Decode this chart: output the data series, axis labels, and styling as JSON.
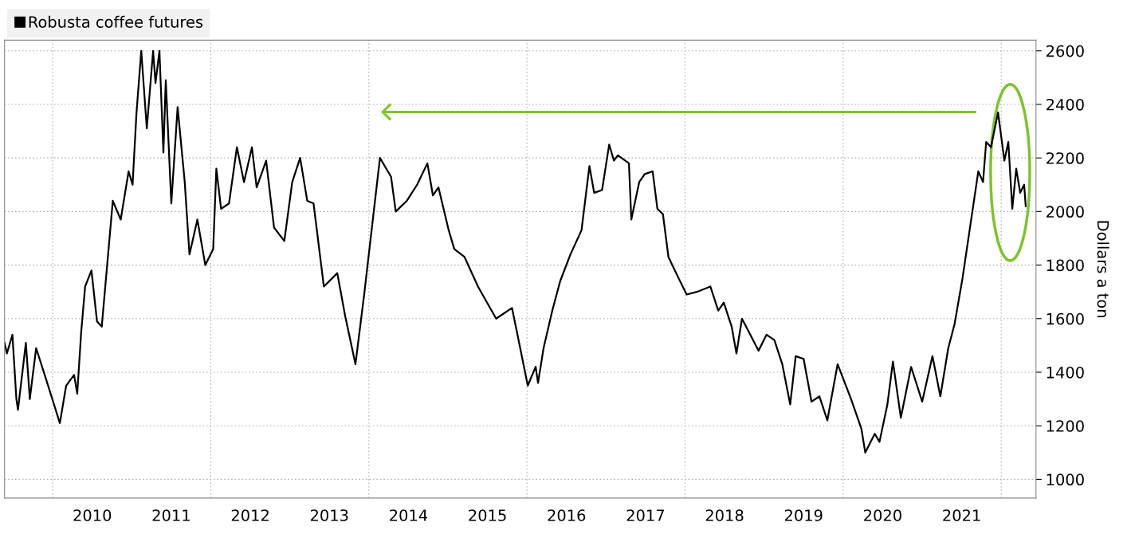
{
  "chart_data": {
    "type": "line",
    "ylabel": "Dollars a ton",
    "x": [
      2009.39,
      2009.42,
      2009.49,
      2009.54,
      2009.56,
      2009.66,
      2009.71,
      2009.79,
      2009.92,
      2010.09,
      2010.17,
      2010.27,
      2010.31,
      2010.36,
      2010.41,
      2010.49,
      2010.56,
      2010.62,
      2010.76,
      2010.86,
      2010.96,
      2011.01,
      2011.06,
      2011.12,
      2011.19,
      2011.27,
      2011.3,
      2011.35,
      2011.4,
      2011.43,
      2011.5,
      2011.58,
      2011.67,
      2011.73,
      2011.83,
      2011.93,
      2012.03,
      2012.07,
      2012.13,
      2012.23,
      2012.33,
      2012.42,
      2012.52,
      2012.58,
      2012.7,
      2012.8,
      2012.93,
      2013.03,
      2013.13,
      2013.22,
      2013.3,
      2013.43,
      2013.6,
      2013.7,
      2013.83,
      2013.94,
      2014.14,
      2014.28,
      2014.34,
      2014.48,
      2014.61,
      2014.74,
      2014.81,
      2014.88,
      2015.01,
      2015.08,
      2015.21,
      2015.38,
      2015.61,
      2015.81,
      2015.88,
      2016.01,
      2016.11,
      2016.14,
      2016.21,
      2016.32,
      2016.42,
      2016.55,
      2016.69,
      2016.79,
      2016.85,
      2016.95,
      2017.04,
      2017.1,
      2017.15,
      2017.29,
      2017.32,
      2017.42,
      2017.49,
      2017.59,
      2017.65,
      2017.72,
      2017.79,
      2017.92,
      2018.02,
      2018.15,
      2018.32,
      2018.42,
      2018.49,
      2018.59,
      2018.65,
      2018.72,
      2018.93,
      2019.03,
      2019.13,
      2019.23,
      2019.33,
      2019.4,
      2019.5,
      2019.6,
      2019.7,
      2019.8,
      2019.93,
      2020.1,
      2020.23,
      2020.28,
      2020.4,
      2020.46,
      2020.56,
      2020.63,
      2020.73,
      2020.86,
      2021.0,
      2021.13,
      2021.23,
      2021.33,
      2021.41,
      2021.51,
      2021.61,
      2021.71,
      2021.77,
      2021.81,
      2021.87,
      2021.96,
      2022.04,
      2022.09,
      2022.14,
      2022.19,
      2022.24,
      2022.29,
      2022.31
    ],
    "series": [
      {
        "name": "Robusta coffee futures",
        "color": "#000000",
        "values": [
          1510,
          1470,
          1540,
          1300,
          1260,
          1510,
          1300,
          1490,
          1370,
          1210,
          1350,
          1390,
          1320,
          1550,
          1720,
          1780,
          1590,
          1570,
          2040,
          1970,
          2150,
          2100,
          2370,
          2600,
          2310,
          2600,
          2480,
          2600,
          2220,
          2490,
          2030,
          2390,
          2110,
          1840,
          1970,
          1800,
          1860,
          2160,
          2010,
          2030,
          2240,
          2110,
          2240,
          2090,
          2190,
          1940,
          1890,
          2110,
          2200,
          2040,
          2030,
          1720,
          1770,
          1610,
          1430,
          1690,
          2200,
          2130,
          2000,
          2040,
          2100,
          2180,
          2060,
          2090,
          1930,
          1860,
          1830,
          1720,
          1600,
          1640,
          1540,
          1350,
          1420,
          1360,
          1490,
          1630,
          1740,
          1840,
          1930,
          2170,
          2070,
          2080,
          2250,
          2190,
          2210,
          2180,
          1970,
          2110,
          2140,
          2150,
          2010,
          1990,
          1830,
          1750,
          1690,
          1700,
          1720,
          1630,
          1660,
          1570,
          1470,
          1600,
          1480,
          1540,
          1520,
          1430,
          1280,
          1460,
          1450,
          1290,
          1310,
          1220,
          1430,
          1300,
          1190,
          1100,
          1170,
          1140,
          1280,
          1440,
          1230,
          1420,
          1290,
          1460,
          1310,
          1490,
          1580,
          1750,
          1950,
          2150,
          2110,
          2260,
          2240,
          2370,
          2190,
          2260,
          2010,
          2160,
          2070,
          2100,
          2020
        ]
      }
    ],
    "xlim": [
      2009.39,
      2022.44
    ],
    "xticks": [
      {
        "value": 2010.5,
        "label": "2010"
      },
      {
        "value": 2011.5,
        "label": "2011"
      },
      {
        "value": 2012.5,
        "label": "2012"
      },
      {
        "value": 2013.5,
        "label": "2013"
      },
      {
        "value": 2014.5,
        "label": "2014"
      },
      {
        "value": 2015.5,
        "label": "2015"
      },
      {
        "value": 2016.5,
        "label": "2016"
      },
      {
        "value": 2017.5,
        "label": "2017"
      },
      {
        "value": 2018.5,
        "label": "2018"
      },
      {
        "value": 2019.5,
        "label": "2019"
      },
      {
        "value": 2020.5,
        "label": "2020"
      },
      {
        "value": 2021.5,
        "label": "2021"
      },
      {
        "value": 2010,
        "label": null
      },
      {
        "value": 2012,
        "label": null
      },
      {
        "value": 2014,
        "label": null
      },
      {
        "value": 2016,
        "label": null
      },
      {
        "value": 2018,
        "label": null
      },
      {
        "value": 2020,
        "label": null
      },
      {
        "value": 2022,
        "label": null
      }
    ],
    "ylim": [
      930,
      2640
    ],
    "yticks": [
      1000,
      1200,
      1400,
      1600,
      1800,
      2000,
      2200,
      2400,
      2600
    ],
    "grid": true,
    "legend": "top left",
    "line_style": "solid",
    "marker": "none"
  }
}
